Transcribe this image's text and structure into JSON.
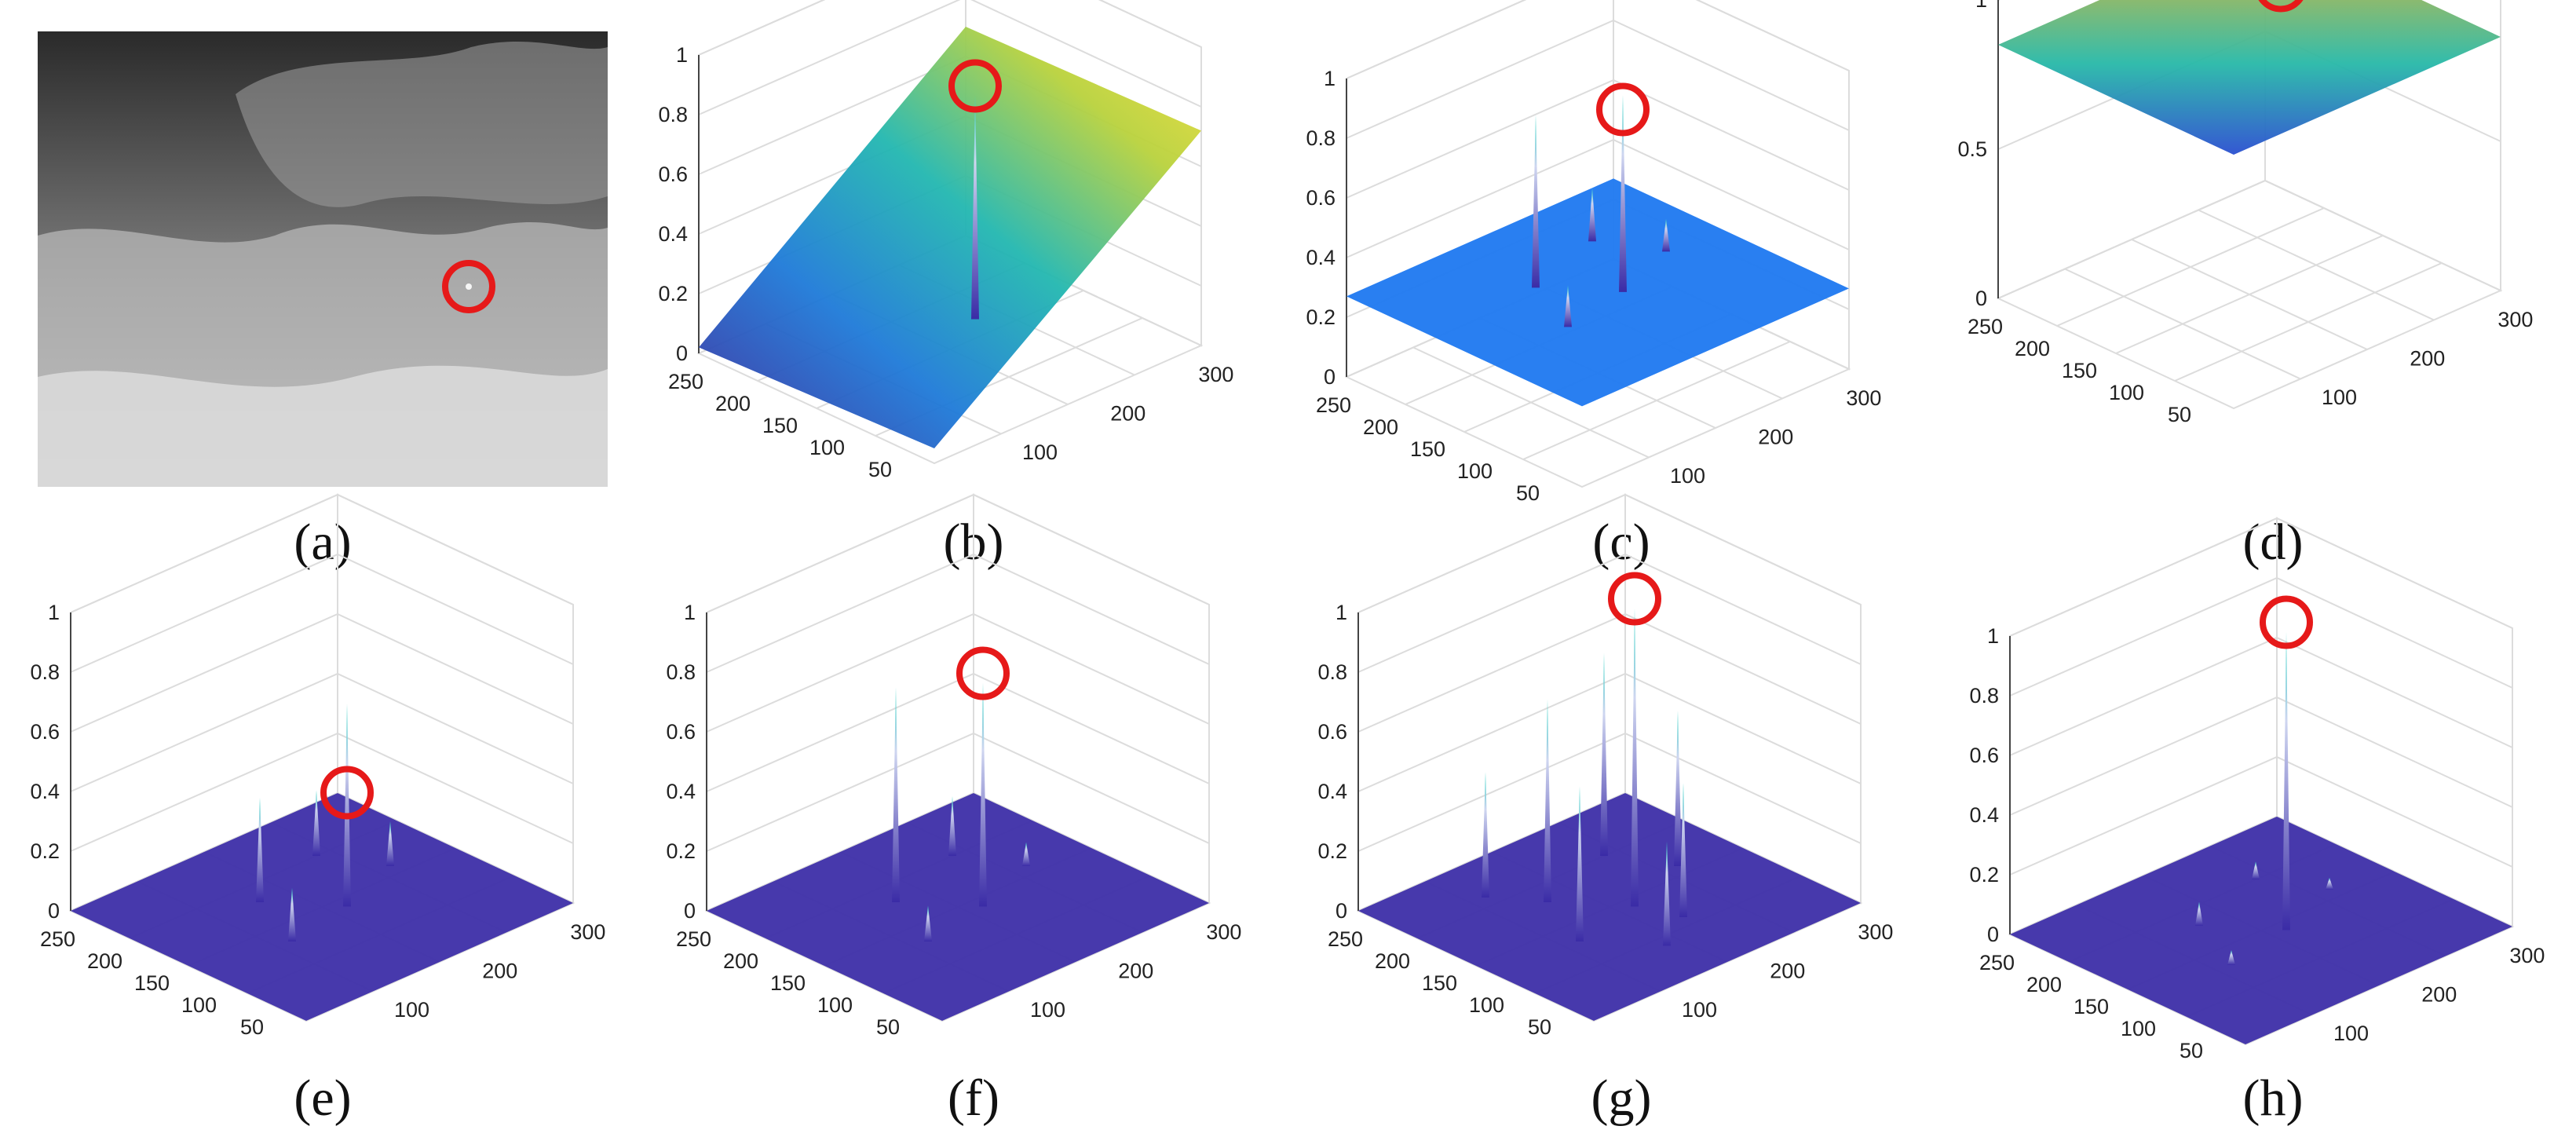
{
  "figure": {
    "captions": [
      "(a)",
      "(b)",
      "(c)",
      "(d)",
      "(e)",
      "(f)",
      "(g)",
      "(h)"
    ]
  },
  "colors": {
    "ring": "#e61919",
    "surface_blue": "#1e78f0",
    "surface_purple": "#3d2ea8",
    "surface_yellow": "#f0b21c",
    "grid": "#dcdcdc",
    "axis": "#444444"
  },
  "chart_data": [
    {
      "panel": "(a)",
      "type": "image",
      "description_type": "infrared grayscale image with small target",
      "marker": "red circle around target"
    },
    {
      "panel": "(b)",
      "type": "surface3d",
      "colormap": "parula",
      "x_ticks": [
        "100",
        "200",
        "300"
      ],
      "y_ticks": [
        "250",
        "200",
        "150",
        "100",
        "50"
      ],
      "z_ticks": [
        "0",
        "0.2",
        "0.4",
        "0.6",
        "0.8",
        "1"
      ],
      "zlim": [
        0,
        1
      ],
      "target_value": 0.85,
      "background_level": "ramp 0.05 to 0.75",
      "marker": "red circle at target peak"
    },
    {
      "panel": "(c)",
      "type": "surface3d",
      "colormap": "blue",
      "x_ticks": [
        "100",
        "200",
        "300"
      ],
      "y_ticks": [
        "250",
        "200",
        "150",
        "100",
        "50"
      ],
      "z_ticks": [
        "0",
        "0.2",
        "0.4",
        "0.6",
        "0.8",
        "1"
      ],
      "zlim": [
        0,
        1
      ],
      "background_level": 0.27,
      "target_value": 0.85,
      "spikes": [
        0.93,
        0.85,
        0.45,
        0.41,
        0.38
      ],
      "marker": "red circle at target peak"
    },
    {
      "panel": "(d)",
      "type": "surface3d",
      "colormap": "parula",
      "x_ticks": [
        "100",
        "200",
        "300"
      ],
      "y_ticks": [
        "250",
        "200",
        "150",
        "100",
        "50"
      ],
      "z_ticks": [
        "0",
        "0.5",
        "1"
      ],
      "zlim": [
        0,
        1
      ],
      "background_level": 0.85,
      "dip_min": 0.05,
      "marker": "red circle at target"
    },
    {
      "panel": "(e)",
      "type": "surface3d",
      "colormap": "purple",
      "x_ticks": [
        "100",
        "200",
        "300"
      ],
      "y_ticks": [
        "250",
        "200",
        "150",
        "100",
        "50"
      ],
      "z_ticks": [
        "0",
        "0.2",
        "0.4",
        "0.6",
        "0.8",
        "1"
      ],
      "zlim": [
        0,
        1
      ],
      "background_level": 0.0,
      "target_value": 0.35,
      "spikes": [
        0.68,
        0.35,
        0.22,
        0.18,
        0.15
      ],
      "marker": "red circle at target peak"
    },
    {
      "panel": "(f)",
      "type": "surface3d",
      "colormap": "purple",
      "x_ticks": [
        "100",
        "200",
        "300"
      ],
      "y_ticks": [
        "250",
        "200",
        "150",
        "100",
        "50"
      ],
      "z_ticks": [
        "0",
        "0.2",
        "0.4",
        "0.6",
        "0.8",
        "1"
      ],
      "zlim": [
        0,
        1
      ],
      "background_level": 0.0,
      "target_value": 0.75,
      "spikes": [
        0.75,
        0.72,
        0.2,
        0.12,
        0.08
      ],
      "marker": "red circle at target peak"
    },
    {
      "panel": "(g)",
      "type": "surface3d",
      "colormap": "purple",
      "x_ticks": [
        "100",
        "200",
        "300"
      ],
      "y_ticks": [
        "250",
        "200",
        "150",
        "100",
        "50"
      ],
      "z_ticks": [
        "0",
        "0.2",
        "0.4",
        "0.6",
        "0.8",
        "1"
      ],
      "zlim": [
        0,
        1
      ],
      "background_level": 0.0,
      "target_value": 1.0,
      "spikes": [
        1.0,
        0.68,
        0.68,
        0.52,
        0.52,
        0.45,
        0.42,
        0.35
      ],
      "marker": "red circle at target peak"
    },
    {
      "panel": "(h)",
      "type": "surface3d",
      "colormap": "purple",
      "x_ticks": [
        "100",
        "200",
        "300"
      ],
      "y_ticks": [
        "250",
        "200",
        "150",
        "100",
        "50"
      ],
      "z_ticks": [
        "0",
        "0.2",
        "0.4",
        "0.6",
        "0.8",
        "1"
      ],
      "zlim": [
        0,
        1
      ],
      "background_level": 0.0,
      "target_value": 1.0,
      "spikes": [
        1.0,
        0.08,
        0.06,
        0.05,
        0.04
      ],
      "marker": "red circle at target peak"
    }
  ]
}
